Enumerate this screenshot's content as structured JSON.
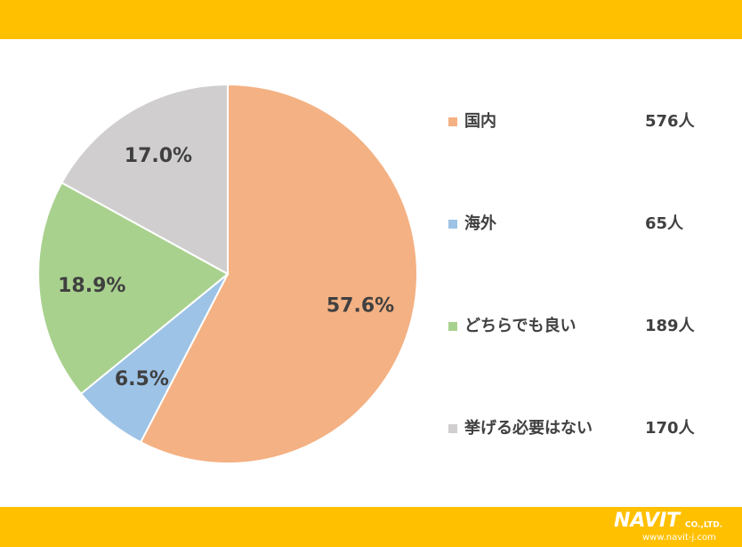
{
  "chart_data": {
    "type": "pie",
    "categories": [
      "国内",
      "海外",
      "どちらでも良い",
      "挙げる必要はない"
    ],
    "values": [
      57.6,
      6.5,
      18.9,
      17.0
    ],
    "value_labels": [
      "57.6%",
      "6.5%",
      "18.9%",
      "17.0%"
    ],
    "counts": [
      "576人",
      "65人",
      "189人",
      "170人"
    ],
    "colors": [
      "#f4b183",
      "#9dc3e6",
      "#a9d18e",
      "#d0cece"
    ]
  },
  "logo": {
    "name": "NAVIT",
    "suffix": "CO.,LTD.",
    "url": "www.navit-j.com"
  }
}
